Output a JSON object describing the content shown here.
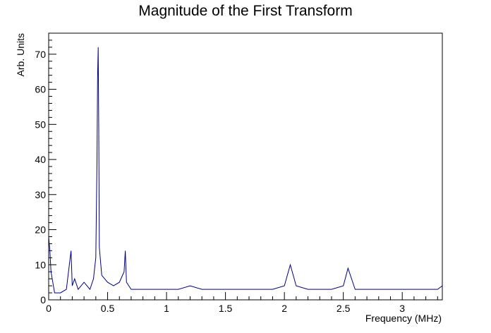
{
  "chart_data": {
    "type": "line",
    "title": "Magnitude of the First Transform",
    "xlabel": "Frequency (MHz)",
    "ylabel": "Arb. Units",
    "xlim": [
      0,
      3.34
    ],
    "ylim": [
      0,
      76
    ],
    "grid": false,
    "legend": "none",
    "x_ticks": [
      "0",
      "0.5",
      "1",
      "1.5",
      "2",
      "2.5",
      "3"
    ],
    "y_ticks": [
      "0",
      "10",
      "20",
      "30",
      "40",
      "50",
      "60",
      "70"
    ],
    "line_color": "#000080",
    "series": [
      {
        "x": [
          0,
          0.01,
          0.02,
          0.03,
          0.05,
          0.1,
          0.15,
          0.19,
          0.2,
          0.22,
          0.25,
          0.3,
          0.35,
          0.38,
          0.4,
          0.41,
          0.415,
          0.42,
          0.425,
          0.43,
          0.45,
          0.5,
          0.55,
          0.6,
          0.64,
          0.65,
          0.66,
          0.7,
          0.8,
          0.9,
          1.0,
          1.1,
          1.2,
          1.3,
          1.4,
          1.5,
          1.6,
          1.7,
          1.8,
          1.9,
          2.0,
          2.05,
          2.1,
          2.2,
          2.3,
          2.4,
          2.5,
          2.54,
          2.6,
          2.7,
          2.8,
          2.9,
          3.0,
          3.1,
          3.2,
          3.3,
          3.34
        ],
        "values": [
          18,
          14,
          8,
          6,
          2,
          2,
          3,
          14,
          4,
          6,
          3,
          5,
          3,
          6,
          12,
          40,
          63,
          72,
          48,
          15,
          7,
          5,
          4,
          5,
          8,
          14,
          5,
          3,
          3,
          3,
          3,
          3,
          4,
          3,
          3,
          3,
          3,
          3,
          3,
          3,
          4,
          10,
          4,
          3,
          3,
          3,
          4,
          9,
          3,
          3,
          3,
          3,
          3,
          3,
          3,
          3,
          4
        ]
      }
    ]
  }
}
